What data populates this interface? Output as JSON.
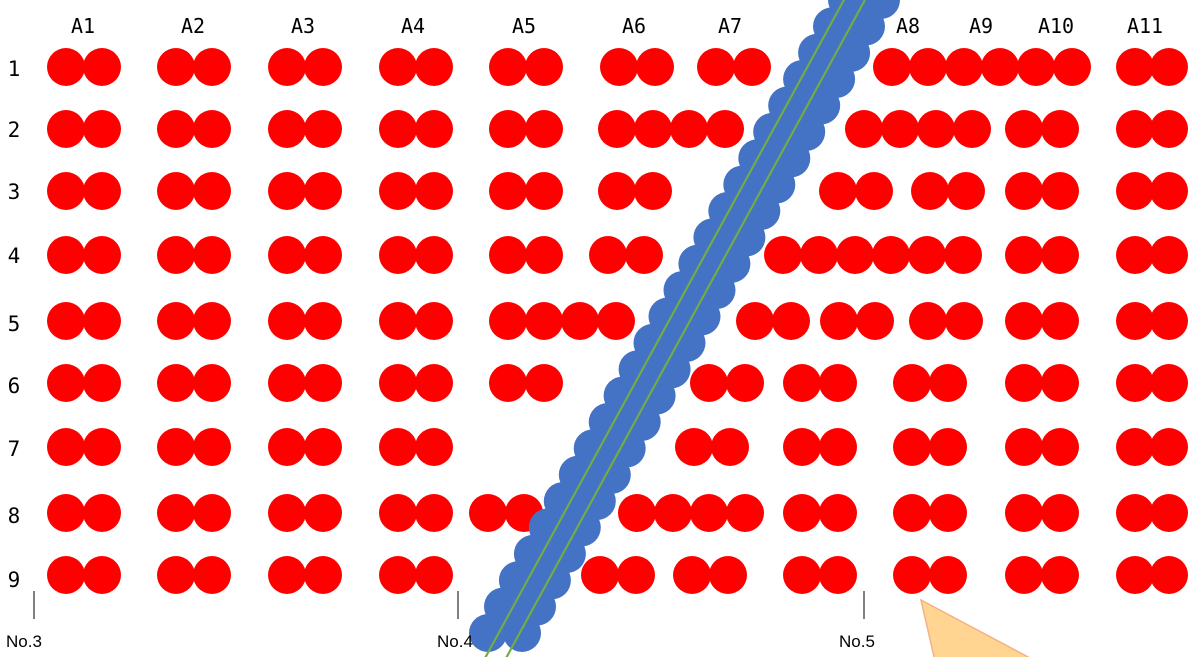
{
  "column_labels": [
    "A1",
    "A2",
    "A3",
    "A4",
    "A5",
    "A6",
    "A7",
    "A8",
    "A9",
    "A10",
    "A11"
  ],
  "row_labels": [
    "1",
    "2",
    "3",
    "4",
    "5",
    "6",
    "7",
    "8",
    "9"
  ],
  "markers": [
    {
      "label": "No.3"
    },
    {
      "label": "No.4"
    },
    {
      "label": "No.5"
    }
  ],
  "colors": {
    "red_circle": "#ff0000",
    "blue_circle": "#4472c4",
    "green_line": "#70ad47",
    "callout_fill": "#ffd591",
    "callout_stroke": "#f4b183"
  }
}
